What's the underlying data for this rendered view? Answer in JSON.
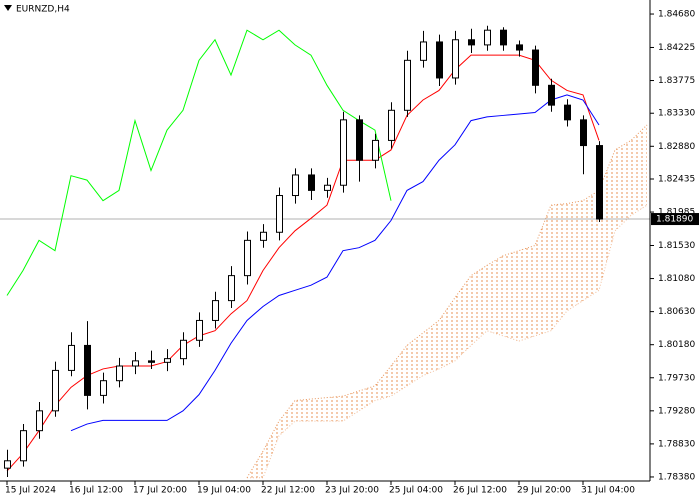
{
  "chart_data": {
    "type": "candlestick",
    "title": "EURNZD,H4",
    "categories": [
      "15 Jul 2024",
      null,
      null,
      null,
      "16 Jul 12:00",
      null,
      null,
      null,
      "17 Jul 20:00",
      null,
      null,
      null,
      "19 Jul 04:00",
      null,
      null,
      null,
      "22 Jul 12:00",
      null,
      null,
      null,
      "23 Jul 20:00",
      null,
      null,
      null,
      "25 Jul 04:00",
      null,
      null,
      null,
      "26 Jul 12:00",
      null,
      null,
      null,
      "29 Jul 20:00",
      null,
      null,
      null,
      "31 Jul 04:00",
      null,
      null,
      null,
      null
    ],
    "candles": {
      "open": [
        1.785,
        1.786,
        1.7901,
        1.7928,
        1.7983,
        1.8017,
        1.7949,
        1.7969,
        1.7989,
        1.7996,
        1.7994,
        1.7999,
        1.8024,
        1.8051,
        1.8078,
        1.8112,
        1.816,
        1.8171,
        1.8221,
        1.8249,
        1.8228,
        1.8235,
        1.8324,
        1.8269,
        1.8296,
        1.8337,
        1.8405,
        1.843,
        1.8381,
        1.8433,
        1.8426,
        1.8446,
        1.8426,
        1.8419,
        1.8371,
        1.8344,
        1.8324,
        1.8289,
        null,
        null,
        null
      ],
      "high": [
        1.7875,
        1.791,
        1.794,
        1.7995,
        1.8035,
        1.805,
        1.798,
        1.8,
        1.8008,
        1.801,
        1.8012,
        1.8035,
        1.8062,
        1.809,
        1.8125,
        1.8172,
        1.8182,
        1.8232,
        1.8258,
        1.8258,
        1.8245,
        1.8335,
        1.833,
        1.8305,
        1.8348,
        1.8418,
        1.8445,
        1.844,
        1.8445,
        1.8448,
        1.8452,
        1.845,
        1.8432,
        1.8425,
        1.838,
        1.8352,
        1.833,
        1.8295,
        null,
        null,
        null
      ],
      "low": [
        1.7838,
        1.7852,
        1.789,
        1.792,
        1.7975,
        1.793,
        1.7938,
        1.796,
        1.7978,
        1.7985,
        1.7982,
        1.799,
        1.8015,
        1.804,
        1.8068,
        1.81,
        1.815,
        1.816,
        1.821,
        1.8215,
        1.8218,
        1.8225,
        1.824,
        1.8258,
        1.8285,
        1.8328,
        1.8395,
        1.837,
        1.8372,
        1.8415,
        1.8418,
        1.8418,
        1.841,
        1.836,
        1.8335,
        1.8315,
        1.825,
        1.8185,
        null,
        null,
        null
      ],
      "close": [
        1.786,
        1.7901,
        1.7928,
        1.7983,
        1.8017,
        1.7949,
        1.7969,
        1.7989,
        1.7996,
        1.7994,
        1.7999,
        1.8024,
        1.8051,
        1.8078,
        1.8112,
        1.816,
        1.8171,
        1.8221,
        1.8249,
        1.8228,
        1.8235,
        1.8324,
        1.8269,
        1.8296,
        1.8337,
        1.8405,
        1.843,
        1.8381,
        1.8433,
        1.8426,
        1.8446,
        1.8426,
        1.8419,
        1.8371,
        1.8344,
        1.8324,
        1.8289,
        1.8189,
        null,
        null,
        null
      ]
    },
    "lines": [
      {
        "color": "#ff0000",
        "values": [
          1.7846,
          1.787,
          1.7901,
          1.7935,
          1.796,
          1.7976,
          1.7985,
          1.7989,
          1.7989,
          1.7989,
          1.7995,
          1.8017,
          1.803,
          1.8037,
          1.806,
          1.8078,
          1.8119,
          1.815,
          1.8173,
          1.819,
          1.8208,
          1.8269,
          1.8269,
          1.8269,
          1.8283,
          1.833,
          1.8351,
          1.8364,
          1.8392,
          1.8412,
          1.8412,
          1.8412,
          1.8412,
          1.8405,
          1.8378,
          1.8364,
          1.8358,
          1.8296,
          null,
          null,
          null
        ]
      },
      {
        "color": "#0000ff",
        "values": [
          null,
          null,
          null,
          null,
          1.7901,
          1.791,
          1.7915,
          1.7915,
          1.7915,
          1.7915,
          1.7915,
          1.7928,
          1.795,
          1.7983,
          1.802,
          1.8051,
          1.807,
          1.8085,
          1.8092,
          1.8099,
          1.811,
          1.8146,
          1.815,
          1.816,
          1.8187,
          1.8228,
          1.824,
          1.8269,
          1.829,
          1.8323,
          1.8328,
          1.833,
          1.8332,
          1.8334,
          1.8351,
          1.8358,
          1.8351,
          1.8317,
          null,
          null,
          null
        ]
      },
      {
        "color": "#00ff00",
        "values": [
          1.8085,
          1.8119,
          1.816,
          1.8146,
          1.8248,
          1.8242,
          1.8214,
          1.8228,
          1.8323,
          1.8255,
          1.831,
          1.8337,
          1.8405,
          1.8433,
          1.8385,
          1.8446,
          1.8433,
          1.8446,
          1.8426,
          1.8412,
          1.8371,
          1.8337,
          1.8323,
          1.831,
          1.8214,
          null,
          null,
          null,
          null,
          null,
          null,
          null,
          null,
          null,
          null,
          null,
          null,
          null,
          null,
          null,
          null
        ]
      }
    ],
    "cloud": {
      "color": "#e8955a",
      "upper": [
        null,
        null,
        null,
        null,
        null,
        null,
        null,
        null,
        null,
        null,
        null,
        null,
        null,
        null,
        null,
        1.7837,
        1.7873,
        1.7914,
        1.7942,
        1.7944,
        1.7946,
        1.7948,
        1.7955,
        1.7962,
        1.7989,
        1.8017,
        1.8034,
        1.8051,
        1.8082,
        1.8112,
        1.8126,
        1.8139,
        1.8146,
        1.8153,
        1.8208,
        1.821,
        1.8214,
        1.8228,
        1.8283,
        1.8296,
        1.8317
      ],
      "lower": [
        null,
        null,
        null,
        null,
        null,
        null,
        null,
        null,
        null,
        null,
        null,
        null,
        null,
        null,
        null,
        1.7837,
        1.7837,
        1.7894,
        1.7914,
        1.7914,
        1.7914,
        1.7914,
        1.7928,
        1.7942,
        1.7948,
        1.7962,
        1.7976,
        1.7985,
        1.7996,
        1.8017,
        1.8037,
        1.803,
        1.8023,
        1.803,
        1.8037,
        1.8064,
        1.8078,
        1.8092,
        1.8173,
        1.8194,
        1.8208
      ]
    },
    "current_price": {
      "value": 1.8189,
      "label": "1.81890"
    },
    "ylim": [
      1.78325,
      1.84871
    ],
    "yticks": [
      {
        "value": 1.8468,
        "label": "1.84680"
      },
      {
        "value": 1.84225,
        "label": "1.84225"
      },
      {
        "value": 1.83775,
        "label": "1.83775"
      },
      {
        "value": 1.8333,
        "label": "1.83330"
      },
      {
        "value": 1.8288,
        "label": "1.82880"
      },
      {
        "value": 1.82435,
        "label": "1.82435"
      },
      {
        "value": 1.81985,
        "label": "1.81985"
      },
      {
        "value": 1.8153,
        "label": "1.81530"
      },
      {
        "value": 1.8108,
        "label": "1.81080"
      },
      {
        "value": 1.8063,
        "label": "1.80630"
      },
      {
        "value": 1.8018,
        "label": "1.80180"
      },
      {
        "value": 1.7973,
        "label": "1.79730"
      },
      {
        "value": 1.7928,
        "label": "1.79280"
      },
      {
        "value": 1.7883,
        "label": "1.78830"
      },
      {
        "value": 1.7838,
        "label": "1.78380"
      }
    ],
    "grid": false
  }
}
